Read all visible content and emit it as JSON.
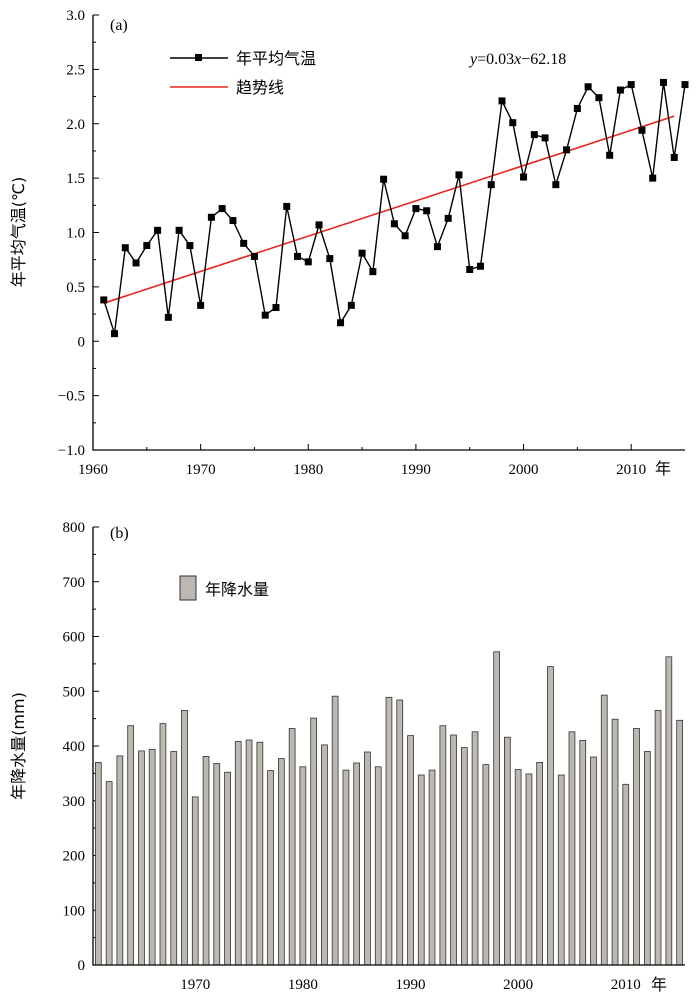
{
  "chart_data": [
    {
      "type": "line",
      "panel_label": "(a)",
      "ylabel": "年平均气温(℃)",
      "year_suffix": "年",
      "xlim": [
        1960,
        2015
      ],
      "ylim": [
        -1.0,
        3.0
      ],
      "yticks": [
        -1.0,
        -0.5,
        0,
        0.5,
        1.0,
        1.5,
        2.0,
        2.5,
        3.0
      ],
      "ytick_labels": [
        "−1.0",
        "−0.5",
        "0",
        "0.5",
        "1.0",
        "1.5",
        "2.0",
        "2.5",
        "3.0"
      ],
      "xticks": [
        1960,
        1970,
        1980,
        1990,
        2000,
        2010
      ],
      "xtick_labels": [
        "1960",
        "1970",
        "1980",
        "1990",
        "2000",
        "2010"
      ],
      "legend": {
        "series_label": "年平均气温",
        "trend_label": "趋势线",
        "position": "top-left"
      },
      "equation": {
        "y": "y",
        "eq1": "=0.03",
        "x": "x",
        "eq2": "−62.18"
      },
      "trend": {
        "slope": 0.03,
        "x_start": 1961,
        "y_start": 0.35,
        "x_end": 2014,
        "y_end": 2.07
      },
      "colors": {
        "series": "#000000",
        "trend": "#e8231c"
      },
      "series": [
        {
          "name": "年平均气温",
          "x": [
            1961,
            1962,
            1963,
            1964,
            1965,
            1966,
            1967,
            1968,
            1969,
            1970,
            1971,
            1972,
            1973,
            1974,
            1975,
            1976,
            1977,
            1978,
            1979,
            1980,
            1981,
            1982,
            1983,
            1984,
            1985,
            1986,
            1987,
            1988,
            1989,
            1990,
            1991,
            1992,
            1993,
            1994,
            1995,
            1996,
            1997,
            1998,
            1999,
            2000,
            2001,
            2002,
            2003,
            2004,
            2005,
            2006,
            2007,
            2008,
            2009,
            2010,
            2011,
            2012,
            2013,
            2014,
            2015
          ],
          "values": [
            0.38,
            0.07,
            0.86,
            0.72,
            0.88,
            1.02,
            0.22,
            1.02,
            0.88,
            0.33,
            1.14,
            1.22,
            1.11,
            0.9,
            0.78,
            0.24,
            0.31,
            1.24,
            0.78,
            0.73,
            1.07,
            0.76,
            0.17,
            0.33,
            0.81,
            0.64,
            1.49,
            1.08,
            0.97,
            1.22,
            1.2,
            0.87,
            1.13,
            1.53,
            0.66,
            0.69,
            1.44,
            2.21,
            2.01,
            1.51,
            1.9,
            1.87,
            1.44,
            1.76,
            2.14,
            2.34,
            2.24,
            1.71,
            2.31,
            2.36,
            1.94,
            1.5,
            2.38,
            1.69,
            2.36
          ]
        }
      ]
    },
    {
      "type": "bar",
      "panel_label": "(b)",
      "ylabel": "年降水量(mm)",
      "year_suffix": "年",
      "ylim": [
        0,
        800
      ],
      "yticks": [
        0,
        100,
        200,
        300,
        400,
        500,
        600,
        700,
        800
      ],
      "ytick_labels": [
        "0",
        "100",
        "200",
        "300",
        "400",
        "500",
        "600",
        "700",
        "800"
      ],
      "xticks": [
        1970,
        1980,
        1990,
        2000,
        2010
      ],
      "xtick_labels": [
        "1970",
        "1980",
        "1990",
        "2000",
        "2010"
      ],
      "legend": {
        "series_label": "年降水量",
        "position": "top-left"
      },
      "colors": {
        "bar_fill": "#bdb7b1",
        "bar_stroke": "#333333"
      },
      "categories": [
        1961,
        1962,
        1963,
        1964,
        1965,
        1966,
        1967,
        1968,
        1969,
        1970,
        1971,
        1972,
        1973,
        1974,
        1975,
        1976,
        1977,
        1978,
        1979,
        1980,
        1981,
        1982,
        1983,
        1984,
        1985,
        1986,
        1987,
        1988,
        1989,
        1990,
        1991,
        1992,
        1993,
        1994,
        1995,
        1996,
        1997,
        1998,
        1999,
        2000,
        2001,
        2002,
        2003,
        2004,
        2005,
        2006,
        2007,
        2008,
        2009,
        2010,
        2011,
        2012,
        2013,
        2014,
        2015
      ],
      "series": [
        {
          "name": "年降水量",
          "values": [
            370,
            335,
            382,
            437,
            391,
            394,
            441,
            390,
            465,
            307,
            381,
            368,
            352,
            408,
            411,
            407,
            355,
            377,
            432,
            362,
            451,
            402,
            491,
            356,
            369,
            389,
            362,
            489,
            484,
            419,
            347,
            356,
            437,
            420,
            397,
            426,
            366,
            572,
            416,
            357,
            349,
            370,
            545,
            347,
            426,
            410,
            380,
            493,
            449,
            330,
            432,
            390,
            465,
            563,
            447
          ]
        }
      ]
    }
  ]
}
